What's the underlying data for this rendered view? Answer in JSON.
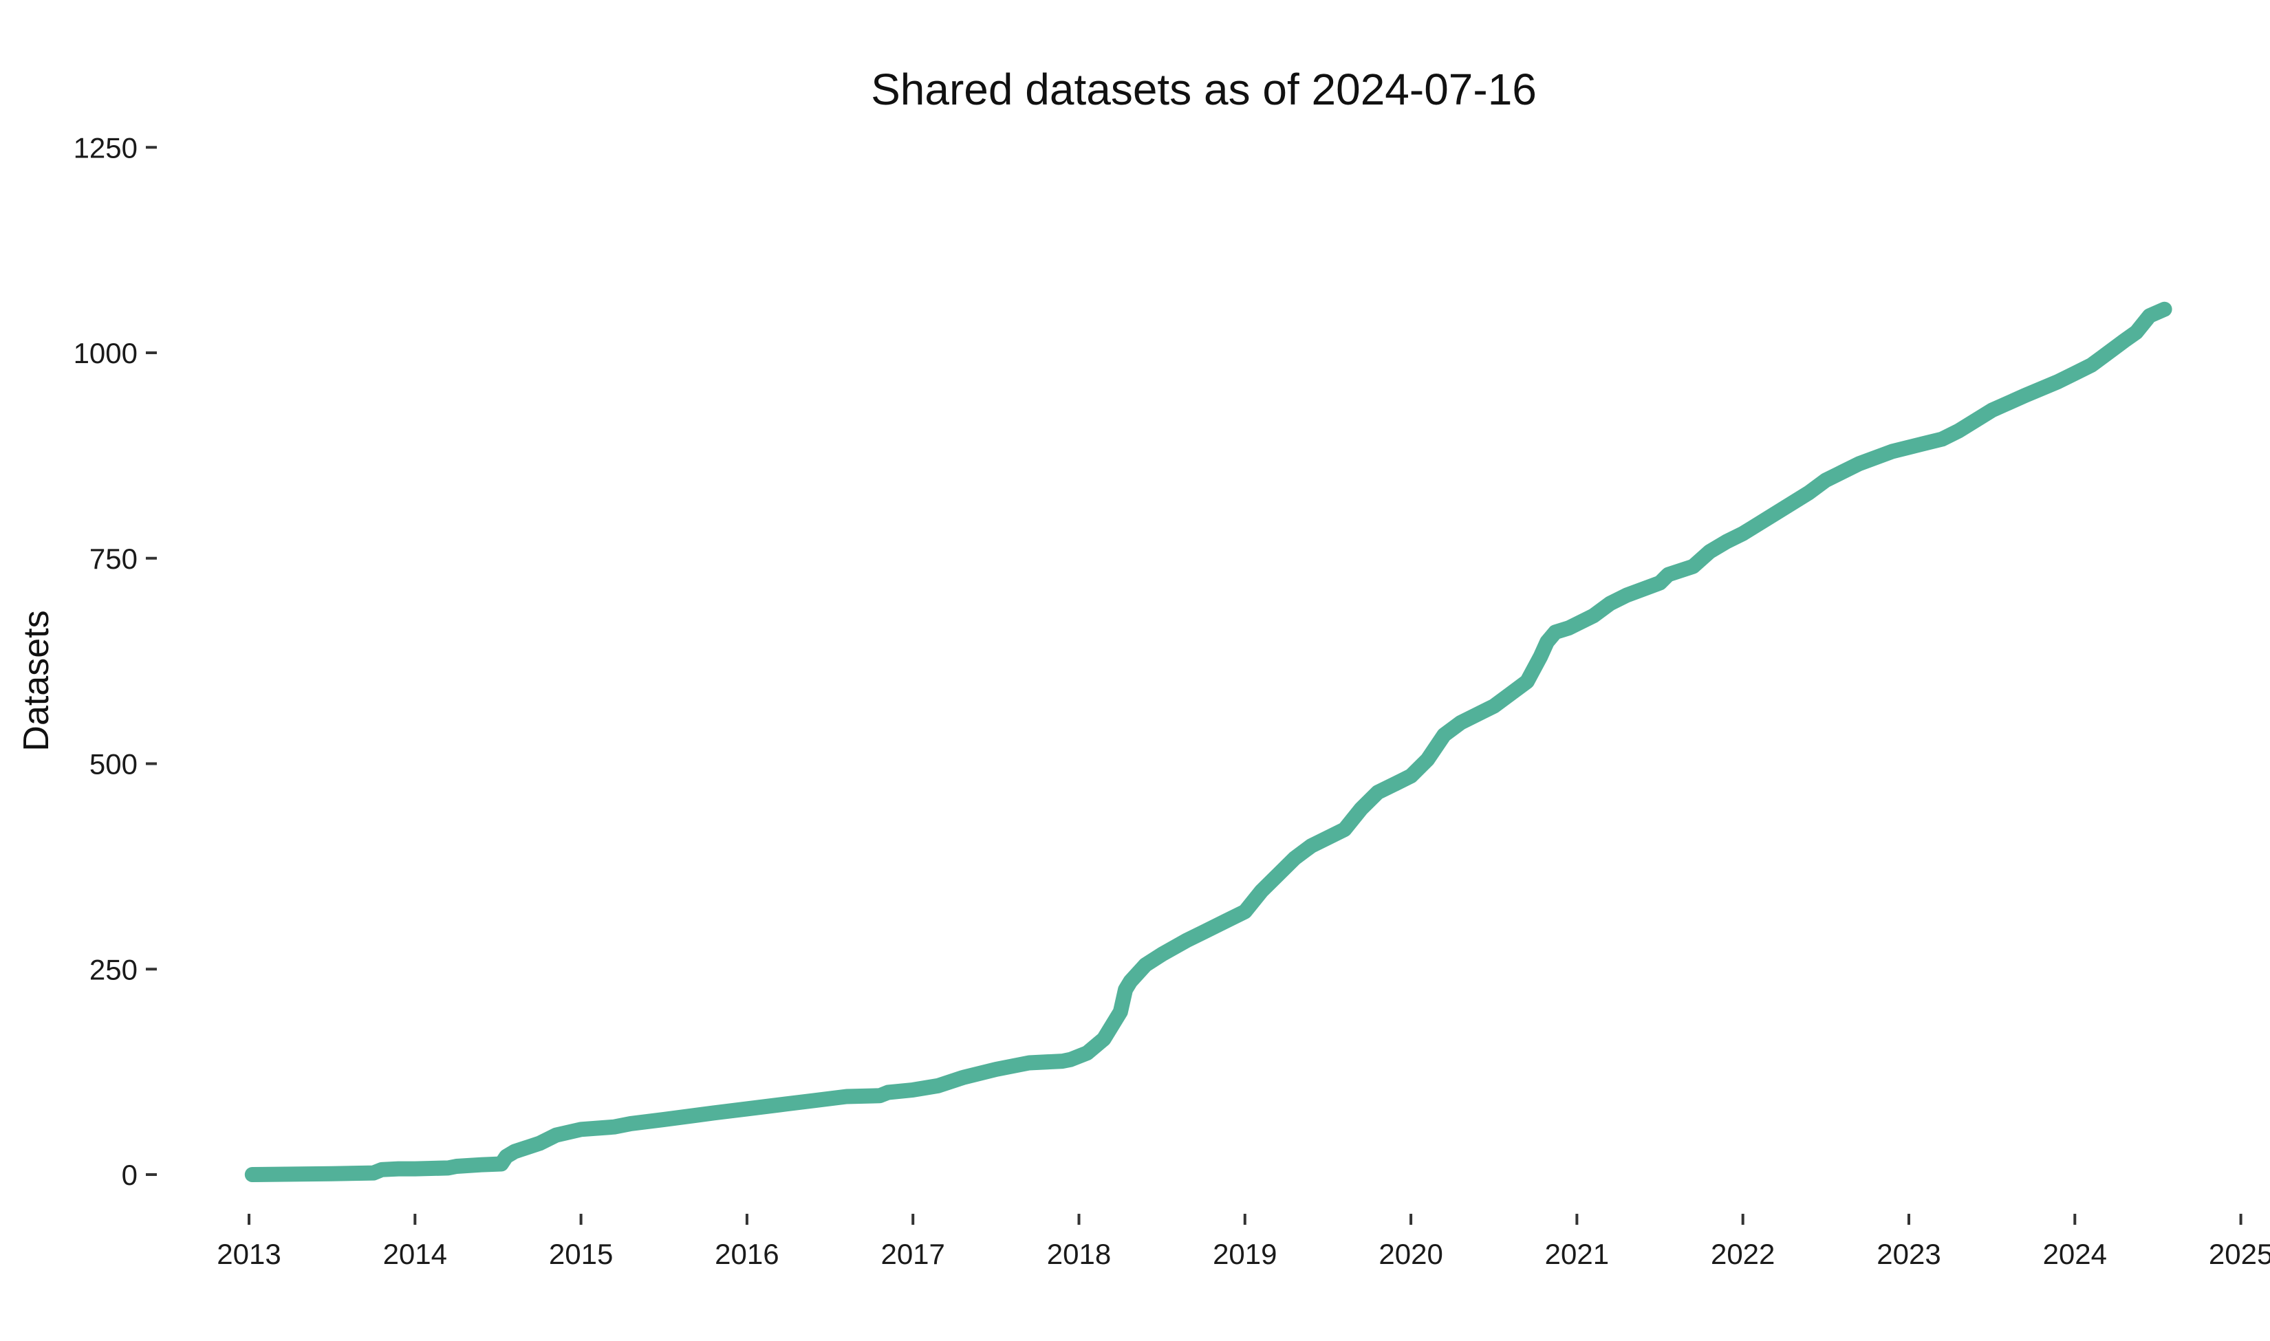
{
  "chart_data": {
    "type": "line",
    "title": "Shared datasets as of 2024-07-16",
    "xlabel": "",
    "ylabel": "Datasets",
    "xlim": [
      2013,
      2025
    ],
    "ylim": [
      0,
      1250
    ],
    "x_ticks": [
      "2013",
      "2014",
      "2015",
      "2016",
      "2017",
      "2018",
      "2019",
      "2020",
      "2021",
      "2022",
      "2023",
      "2024",
      "2025"
    ],
    "y_ticks": [
      "0",
      "250",
      "500",
      "750",
      "1000",
      "1250"
    ],
    "grid": false,
    "line_color": "#52b199",
    "series": [
      {
        "x": [
          2013.02,
          2013.5,
          2013.75,
          2013.8,
          2013.9,
          2014.0,
          2014.2,
          2014.25,
          2014.4,
          2014.52,
          2014.55,
          2014.6,
          2014.75,
          2014.85,
          2015.0,
          2015.2,
          2015.3,
          2015.5,
          2015.8,
          2016.0,
          2016.2,
          2016.4,
          2016.6,
          2016.8,
          2016.85,
          2017.0,
          2017.15,
          2017.3,
          2017.5,
          2017.7,
          2017.9,
          2017.95,
          2018.05,
          2018.15,
          2018.25,
          2018.28,
          2018.31,
          2018.4,
          2018.5,
          2018.65,
          2018.75,
          2018.9,
          2019.0,
          2019.1,
          2019.2,
          2019.3,
          2019.4,
          2019.6,
          2019.7,
          2019.8,
          2019.9,
          2020.0,
          2020.1,
          2020.2,
          2020.3,
          2020.4,
          2020.5,
          2020.6,
          2020.7,
          2020.78,
          2020.82,
          2020.87,
          2020.95,
          2021.0,
          2021.1,
          2021.2,
          2021.3,
          2021.5,
          2021.55,
          2021.7,
          2021.8,
          2021.9,
          2022.0,
          2022.2,
          2022.4,
          2022.5,
          2022.6,
          2022.7,
          2022.9,
          2023.0,
          2023.2,
          2023.3,
          2023.5,
          2023.7,
          2023.9,
          2024.0,
          2024.1,
          2024.2,
          2024.3,
          2024.37,
          2024.45,
          2024.54
        ],
        "y": [
          0,
          1,
          2,
          6,
          7,
          7,
          8,
          10,
          12,
          13,
          22,
          28,
          38,
          48,
          55,
          58,
          62,
          67,
          75,
          80,
          85,
          90,
          95,
          96,
          100,
          103,
          108,
          118,
          128,
          136,
          138,
          140,
          148,
          165,
          198,
          225,
          235,
          255,
          268,
          285,
          295,
          310,
          320,
          345,
          365,
          385,
          400,
          420,
          445,
          465,
          475,
          485,
          505,
          535,
          550,
          560,
          570,
          585,
          600,
          630,
          648,
          660,
          665,
          670,
          680,
          695,
          705,
          720,
          730,
          740,
          758,
          770,
          780,
          805,
          830,
          845,
          855,
          865,
          880,
          885,
          895,
          905,
          930,
          948,
          965,
          975,
          985,
          1000,
          1015,
          1025,
          1045,
          1053
        ]
      }
    ]
  }
}
